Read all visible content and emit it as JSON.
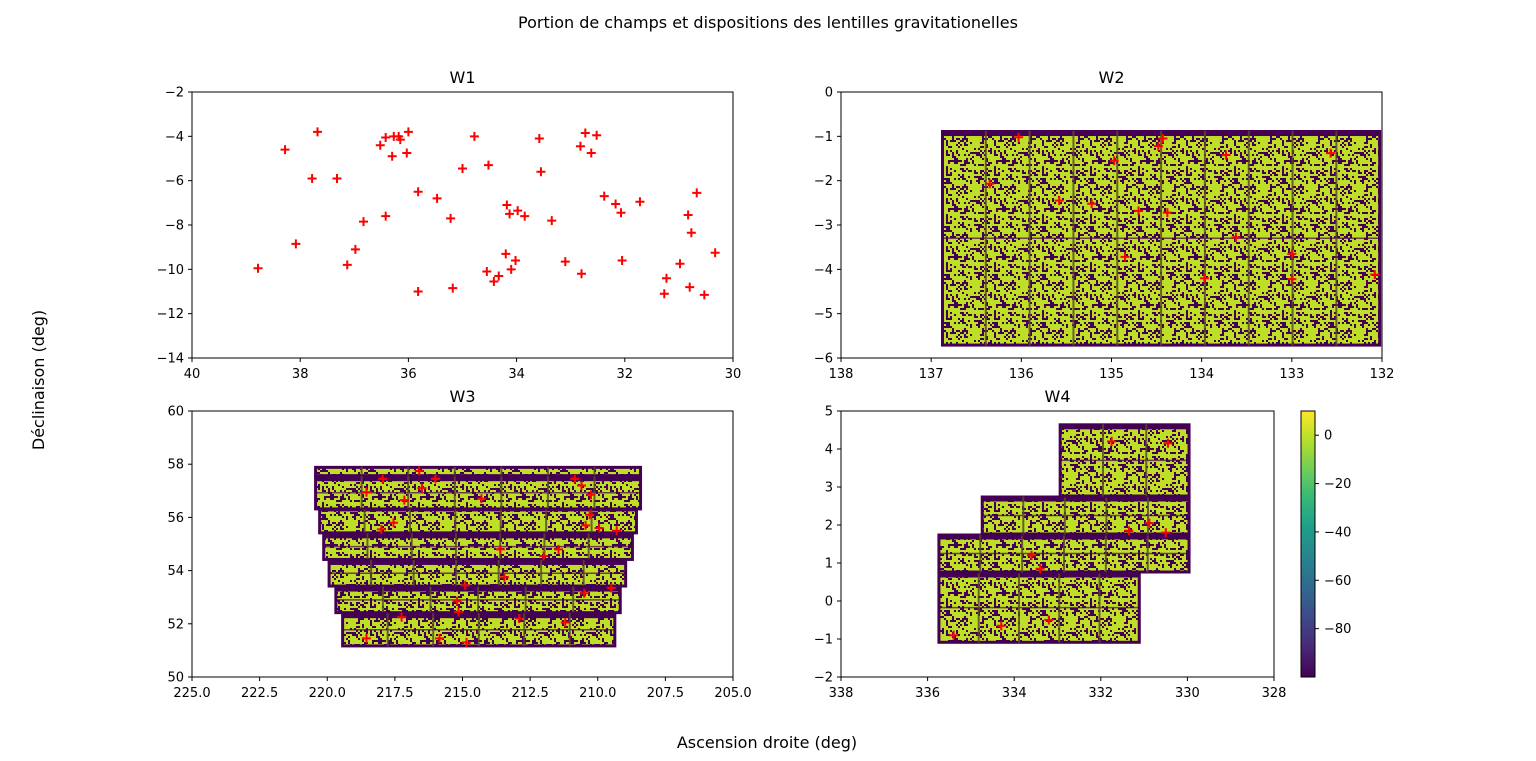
{
  "figure": {
    "suptitle": "Portion de champs et dispositions des lentilles gravitationelles",
    "xlabel": "Ascension droite (deg)",
    "ylabel": "Déclinaison (deg)"
  },
  "colors": {
    "marker": "#ff0000",
    "mask_high": "#bddf26",
    "mask_low": "#440154",
    "colormap": [
      "#440154",
      "#482878",
      "#3e4989",
      "#31688e",
      "#26828e",
      "#1f9e89",
      "#35b779",
      "#6ece58",
      "#b5de2b",
      "#fde725"
    ]
  },
  "colorbar": {
    "range": [
      -100,
      10
    ],
    "ticks": [
      0,
      -20,
      -40,
      -60,
      -80
    ],
    "tick_labels": [
      "0",
      "−20",
      "−40",
      "−60",
      "−80"
    ]
  },
  "chart_data": [
    {
      "type": "scatter",
      "title": "W1",
      "xlim": [
        40,
        30
      ],
      "ylim": [
        -14,
        -2
      ],
      "xticks": [
        40,
        38,
        36,
        34,
        32,
        30
      ],
      "xtick_labels": [
        "40",
        "38",
        "36",
        "34",
        "32",
        "30"
      ],
      "yticks": [
        -2,
        -4,
        -6,
        -8,
        -10,
        -12,
        -14
      ],
      "ytick_labels": [
        "−2",
        "−4",
        "−6",
        "−8",
        "−10",
        "−12",
        "−14"
      ],
      "mask_rects": [],
      "points": [
        [
          38.78,
          -9.95
        ],
        [
          38.28,
          -4.6
        ],
        [
          38.08,
          -8.85
        ],
        [
          37.78,
          -5.9
        ],
        [
          37.68,
          -3.8
        ],
        [
          37.32,
          -5.9
        ],
        [
          37.13,
          -9.8
        ],
        [
          36.98,
          -9.1
        ],
        [
          36.83,
          -7.85
        ],
        [
          36.52,
          -4.4
        ],
        [
          36.42,
          -4.05
        ],
        [
          36.42,
          -7.6
        ],
        [
          36.3,
          -4.9
        ],
        [
          36.27,
          -4.0
        ],
        [
          36.18,
          -4.0
        ],
        [
          36.15,
          -4.15
        ],
        [
          36.03,
          -4.75
        ],
        [
          36.0,
          -3.8
        ],
        [
          35.82,
          -6.5
        ],
        [
          35.82,
          -11.0
        ],
        [
          35.47,
          -6.8
        ],
        [
          35.22,
          -7.7
        ],
        [
          35.18,
          -10.85
        ],
        [
          35.0,
          -5.45
        ],
        [
          34.78,
          -4.0
        ],
        [
          34.55,
          -10.1
        ],
        [
          34.52,
          -5.3
        ],
        [
          34.42,
          -10.55
        ],
        [
          34.33,
          -10.3
        ],
        [
          34.2,
          -9.3
        ],
        [
          34.18,
          -7.1
        ],
        [
          34.13,
          -7.5
        ],
        [
          34.1,
          -10.0
        ],
        [
          34.02,
          -9.6
        ],
        [
          33.98,
          -7.35
        ],
        [
          33.85,
          -7.6
        ],
        [
          33.58,
          -4.1
        ],
        [
          33.55,
          -5.6
        ],
        [
          33.35,
          -7.8
        ],
        [
          33.1,
          -9.65
        ],
        [
          32.82,
          -4.45
        ],
        [
          32.8,
          -10.2
        ],
        [
          32.73,
          -3.85
        ],
        [
          32.62,
          -4.75
        ],
        [
          32.52,
          -3.95
        ],
        [
          32.38,
          -6.7
        ],
        [
          32.17,
          -7.05
        ],
        [
          32.07,
          -7.45
        ],
        [
          32.05,
          -9.6
        ],
        [
          31.72,
          -6.95
        ],
        [
          31.27,
          -11.1
        ],
        [
          31.23,
          -10.4
        ],
        [
          30.98,
          -9.75
        ],
        [
          30.83,
          -7.55
        ],
        [
          30.8,
          -10.8
        ],
        [
          30.77,
          -8.35
        ],
        [
          30.67,
          -6.55
        ],
        [
          30.53,
          -11.15
        ],
        [
          30.33,
          -9.25
        ]
      ]
    },
    {
      "type": "scatter",
      "title": "W2",
      "xlim": [
        138,
        132
      ],
      "ylim": [
        -6,
        0
      ],
      "xticks": [
        138,
        137,
        136,
        135,
        134,
        133,
        132
      ],
      "xtick_labels": [
        "138",
        "137",
        "136",
        "135",
        "134",
        "133",
        "132"
      ],
      "yticks": [
        0,
        -1,
        -2,
        -3,
        -4,
        -5,
        -6
      ],
      "ytick_labels": [
        "0",
        "−1",
        "−2",
        "−3",
        "−4",
        "−5",
        "−6"
      ],
      "mask_rects": [
        [
          136.88,
          -5.72,
          132.02,
          -0.88
        ]
      ],
      "points": [
        [
          136.03,
          -1.02
        ],
        [
          136.35,
          -2.07
        ],
        [
          135.58,
          -2.45
        ],
        [
          135.22,
          -2.52
        ],
        [
          134.97,
          -1.55
        ],
        [
          134.85,
          -3.72
        ],
        [
          134.7,
          -2.68
        ],
        [
          134.48,
          -1.22
        ],
        [
          134.43,
          -1.05
        ],
        [
          134.38,
          -2.72
        ],
        [
          133.73,
          -1.42
        ],
        [
          133.97,
          -4.2
        ],
        [
          133.62,
          -3.28
        ],
        [
          133.0,
          -3.65
        ],
        [
          133.0,
          -4.22
        ],
        [
          132.57,
          -1.38
        ],
        [
          132.08,
          -4.12
        ]
      ]
    },
    {
      "type": "scatter",
      "title": "W3",
      "xlim": [
        225,
        205
      ],
      "ylim": [
        50,
        60
      ],
      "xticks": [
        225,
        222.5,
        220,
        217.5,
        215,
        212.5,
        210,
        207.5,
        205
      ],
      "xtick_labels": [
        "225.0",
        "222.5",
        "220.0",
        "217.5",
        "215.0",
        "212.5",
        "210.0",
        "207.5",
        "205.0"
      ],
      "yticks": [
        50,
        52,
        54,
        56,
        58,
        60
      ],
      "ytick_labels": [
        "50",
        "52",
        "54",
        "56",
        "58",
        "60"
      ],
      "mask_rects": [
        [
          220.45,
          57.55,
          208.4,
          57.9
        ],
        [
          220.45,
          56.3,
          208.4,
          57.55
        ],
        [
          220.3,
          55.4,
          208.55,
          56.3
        ],
        [
          220.15,
          54.4,
          208.7,
          55.4
        ],
        [
          219.95,
          53.4,
          208.95,
          54.4
        ],
        [
          219.7,
          52.4,
          209.15,
          53.4
        ],
        [
          219.45,
          51.15,
          209.35,
          52.4
        ]
      ],
      "points": [
        [
          216.6,
          57.75
        ],
        [
          216.0,
          57.45
        ],
        [
          217.95,
          57.45
        ],
        [
          216.5,
          57.1
        ],
        [
          218.55,
          56.95
        ],
        [
          217.15,
          56.65
        ],
        [
          214.3,
          56.7
        ],
        [
          210.85,
          57.45
        ],
        [
          210.6,
          57.2
        ],
        [
          210.25,
          56.85
        ],
        [
          210.3,
          56.1
        ],
        [
          210.45,
          55.7
        ],
        [
          209.95,
          55.6
        ],
        [
          209.3,
          55.5
        ],
        [
          217.55,
          55.8
        ],
        [
          218.0,
          55.55
        ],
        [
          213.6,
          54.8
        ],
        [
          212.0,
          54.55
        ],
        [
          211.45,
          54.8
        ],
        [
          213.45,
          53.75
        ],
        [
          214.9,
          53.45
        ],
        [
          210.5,
          53.15
        ],
        [
          209.5,
          53.35
        ],
        [
          215.2,
          52.85
        ],
        [
          215.15,
          52.45
        ],
        [
          217.25,
          52.25
        ],
        [
          212.9,
          52.2
        ],
        [
          211.2,
          52.05
        ],
        [
          215.85,
          51.45
        ],
        [
          214.85,
          51.3
        ],
        [
          218.55,
          51.45
        ]
      ]
    },
    {
      "type": "scatter",
      "title": "W4",
      "xlim": [
        338,
        328
      ],
      "ylim": [
        -2,
        5
      ],
      "xticks": [
        338,
        336,
        334,
        332,
        330,
        328
      ],
      "xtick_labels": [
        "338",
        "336",
        "334",
        "332",
        "330",
        "328"
      ],
      "yticks": [
        5,
        4,
        3,
        2,
        1,
        0,
        -1,
        -2
      ],
      "ytick_labels": [
        "5",
        "4",
        "3",
        "2",
        "1",
        "0",
        "−1",
        "−2"
      ],
      "mask_rects": [
        [
          335.75,
          -1.1,
          331.1,
          0.75
        ],
        [
          335.75,
          0.75,
          329.95,
          1.75
        ],
        [
          334.75,
          1.75,
          329.95,
          2.75
        ],
        [
          332.95,
          2.75,
          329.95,
          4.65
        ]
      ],
      "points": [
        [
          331.75,
          4.2
        ],
        [
          330.45,
          4.15
        ],
        [
          331.35,
          1.85
        ],
        [
          330.88,
          2.05
        ],
        [
          330.5,
          1.8
        ],
        [
          333.6,
          1.2
        ],
        [
          333.4,
          0.85
        ],
        [
          335.4,
          -0.9
        ],
        [
          334.3,
          -0.65
        ],
        [
          333.2,
          -0.5
        ]
      ]
    }
  ]
}
